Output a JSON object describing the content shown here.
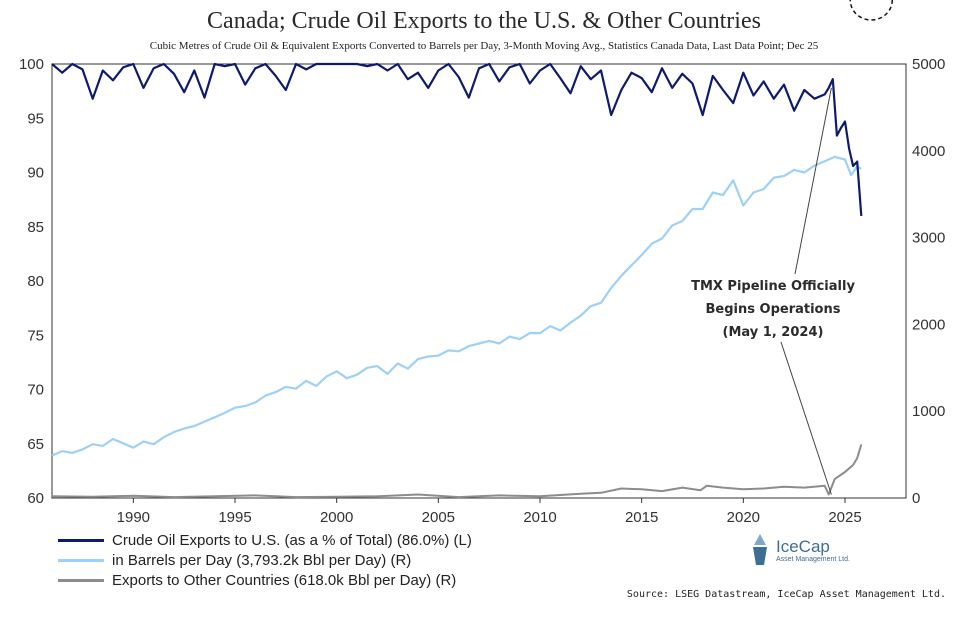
{
  "title": "Canada; Crude Oil Exports to the U.S. & Other Countries",
  "subtitle": "Cubic Metres of Crude Oil & Equivalent Exports Converted to Barrels per Day, 3-Month Moving Avg., Statistics Canada Data, Last Data Point; Dec 25",
  "source": "Source: LSEG Datastream, IceCap Asset Management Ltd.",
  "logo": {
    "name": "IceCap",
    "tagline": "Asset Management Ltd."
  },
  "annotation": {
    "lines": [
      "TMX Pipeline Officially",
      "Begins Operations",
      "(May 1, 2024)"
    ],
    "event_year": 2024.33
  },
  "colors": {
    "us_pct": "#0e1a6e",
    "us_bbl": "#9fd0f6",
    "other": "#8c8c8c",
    "axis": "#333333"
  },
  "chart_data": {
    "type": "line",
    "title": "Canada; Crude Oil Exports to the U.S. & Other Countries",
    "x_range": [
      1986,
      2028
    ],
    "x_ticks": [
      1990,
      1995,
      2000,
      2005,
      2010,
      2015,
      2020,
      2025
    ],
    "y_left": {
      "range": [
        60,
        100
      ],
      "ticks": [
        60,
        65,
        70,
        75,
        80,
        85,
        90,
        95,
        100
      ]
    },
    "y_right": {
      "range": [
        0,
        5000
      ],
      "ticks": [
        0,
        1000,
        2000,
        3000,
        4000,
        5000
      ]
    },
    "highlight": {
      "x": 2025.8,
      "y_left": 86.0,
      "style": "dashed-circle"
    },
    "series": [
      {
        "name": "Crude Oil Exports to U.S. (as a % of Total) (86.0%) (L)",
        "axis": "left",
        "x": [
          1986.0,
          1986.5,
          1987.0,
          1987.5,
          1988.0,
          1988.5,
          1989.0,
          1989.5,
          1990.0,
          1990.5,
          1991.0,
          1991.5,
          1992.0,
          1992.5,
          1993.0,
          1993.5,
          1994.0,
          1994.5,
          1995.0,
          1995.5,
          1996.0,
          1996.5,
          1997.0,
          1997.5,
          1998.0,
          1998.5,
          1999.0,
          1999.5,
          2000.0,
          2000.5,
          2001.0,
          2001.5,
          2002.0,
          2002.5,
          2003.0,
          2003.5,
          2004.0,
          2004.5,
          2005.0,
          2005.5,
          2006.0,
          2006.5,
          2007.0,
          2007.5,
          2008.0,
          2008.5,
          2009.0,
          2009.5,
          2010.0,
          2010.5,
          2011.0,
          2011.5,
          2012.0,
          2012.5,
          2013.0,
          2013.5,
          2014.0,
          2014.5,
          2015.0,
          2015.5,
          2016.0,
          2016.5,
          2017.0,
          2017.5,
          2018.0,
          2018.5,
          2019.0,
          2019.5,
          2020.0,
          2020.5,
          2021.0,
          2021.5,
          2022.0,
          2022.5,
          2023.0,
          2023.5,
          2024.0,
          2024.2,
          2024.4,
          2024.6,
          2024.8,
          2025.0,
          2025.2,
          2025.4,
          2025.6,
          2025.8
        ],
        "values": [
          100,
          99.2,
          100,
          99.5,
          96.8,
          99.4,
          98.5,
          99.7,
          100,
          97.8,
          99.6,
          100,
          99.1,
          97.4,
          99.4,
          96.9,
          100,
          99.8,
          100,
          98.1,
          99.6,
          100,
          98.9,
          97.6,
          100,
          99.5,
          100,
          100,
          100,
          100,
          100,
          99.8,
          100,
          99.4,
          100,
          98.6,
          99.2,
          97.8,
          99.4,
          100,
          98.8,
          96.9,
          99.6,
          100,
          98.4,
          99.7,
          100,
          98.2,
          99.4,
          100,
          98.7,
          97.3,
          99.8,
          98.6,
          99.4,
          95.3,
          97.6,
          99.2,
          98.7,
          97.4,
          99.6,
          97.8,
          99.1,
          98.2,
          95.3,
          98.9,
          97.6,
          96.4,
          99.2,
          97.1,
          98.4,
          96.8,
          98.1,
          95.7,
          97.6,
          96.8,
          97.2,
          97.8,
          98.6,
          93.4,
          94.1,
          94.7,
          92.2,
          90.6,
          91.0,
          86.0
        ]
      },
      {
        "name": "in Barrels per Day (3,793.2k Bbl per Day) (R)",
        "axis": "right",
        "x": [
          1986.0,
          1986.5,
          1987.0,
          1987.5,
          1988.0,
          1988.5,
          1989.0,
          1989.5,
          1990.0,
          1990.5,
          1991.0,
          1991.5,
          1992.0,
          1992.5,
          1993.0,
          1993.5,
          1994.0,
          1994.5,
          1995.0,
          1995.5,
          1996.0,
          1996.5,
          1997.0,
          1997.5,
          1998.0,
          1998.5,
          1999.0,
          1999.5,
          2000.0,
          2000.5,
          2001.0,
          2001.5,
          2002.0,
          2002.5,
          2003.0,
          2003.5,
          2004.0,
          2004.5,
          2005.0,
          2005.5,
          2006.0,
          2006.5,
          2007.0,
          2007.5,
          2008.0,
          2008.5,
          2009.0,
          2009.5,
          2010.0,
          2010.5,
          2011.0,
          2011.5,
          2012.0,
          2012.5,
          2013.0,
          2013.5,
          2014.0,
          2014.5,
          2015.0,
          2015.5,
          2016.0,
          2016.5,
          2017.0,
          2017.5,
          2018.0,
          2018.5,
          2019.0,
          2019.5,
          2020.0,
          2020.5,
          2021.0,
          2021.5,
          2022.0,
          2022.5,
          2023.0,
          2023.5,
          2024.0,
          2024.5,
          2025.0,
          2025.3,
          2025.6,
          2025.8
        ],
        "values": [
          490,
          540,
          520,
          560,
          620,
          600,
          680,
          630,
          580,
          650,
          620,
          700,
          760,
          800,
          830,
          880,
          930,
          980,
          1040,
          1060,
          1100,
          1180,
          1220,
          1280,
          1260,
          1350,
          1290,
          1400,
          1460,
          1380,
          1420,
          1500,
          1520,
          1430,
          1550,
          1490,
          1600,
          1630,
          1640,
          1700,
          1690,
          1750,
          1780,
          1810,
          1780,
          1860,
          1830,
          1900,
          1900,
          1980,
          1930,
          2020,
          2100,
          2210,
          2250,
          2420,
          2560,
          2680,
          2800,
          2930,
          2990,
          3140,
          3190,
          3330,
          3330,
          3520,
          3490,
          3660,
          3370,
          3520,
          3560,
          3690,
          3710,
          3780,
          3750,
          3830,
          3880,
          3930,
          3900,
          3720,
          3820,
          3793.2
        ]
      },
      {
        "name": "Exports to Other Countries (618.0k Bbl per Day) (R)",
        "axis": "right",
        "x": [
          1986.0,
          1988.0,
          1990.0,
          1992.0,
          1994.0,
          1996.0,
          1998.0,
          2000.0,
          2002.0,
          2004.0,
          2006.0,
          2008.0,
          2010.0,
          2011.0,
          2012.0,
          2013.0,
          2014.0,
          2015.0,
          2016.0,
          2017.0,
          2017.9,
          2018.2,
          2019.0,
          2020.0,
          2021.0,
          2022.0,
          2023.0,
          2024.0,
          2024.2,
          2024.5,
          2025.0,
          2025.4,
          2025.6,
          2025.8
        ],
        "values": [
          20,
          15,
          25,
          10,
          20,
          30,
          10,
          15,
          20,
          40,
          10,
          30,
          20,
          35,
          50,
          60,
          110,
          100,
          80,
          120,
          90,
          140,
          120,
          100,
          110,
          130,
          120,
          140,
          40,
          220,
          300,
          380,
          460,
          618
        ]
      }
    ]
  },
  "legend": [
    {
      "label": "Crude Oil Exports to U.S. (as a % of Total) (86.0%) (L)",
      "color": "#0e1a6e"
    },
    {
      "label": "in Barrels per Day (3,793.2k Bbl per Day) (R)",
      "color": "#9fd0f6"
    },
    {
      "label": "Exports to Other Countries (618.0k Bbl per Day) (R)",
      "color": "#8c8c8c"
    }
  ]
}
